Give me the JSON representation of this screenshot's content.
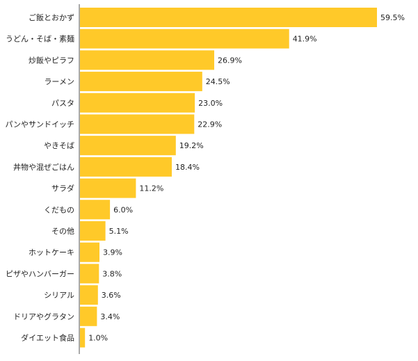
{
  "chart_data": {
    "type": "bar",
    "orientation": "horizontal",
    "categories": [
      "ご飯とおかず",
      "うどん・そば・素麺",
      "炒飯やピラフ",
      "ラーメン",
      "パスタ",
      "パンやサンドイッチ",
      "やきそば",
      "丼物や混ぜごはん",
      "サラダ",
      "くだもの",
      "その他",
      "ホットケーキ",
      "ピザやハンバーガー",
      "シリアル",
      "ドリアやグラタン",
      "ダイエット食品"
    ],
    "values": [
      59.5,
      41.9,
      26.9,
      24.5,
      23.0,
      22.9,
      19.2,
      18.4,
      11.2,
      6.0,
      5.1,
      3.9,
      3.8,
      3.6,
      3.4,
      1.0
    ],
    "value_labels": [
      "59.5%",
      "41.9%",
      "26.9%",
      "24.5%",
      "23.0%",
      "22.9%",
      "19.2%",
      "18.4%",
      "11.2%",
      "6.0%",
      "5.1%",
      "3.9%",
      "3.8%",
      "3.6%",
      "3.4%",
      "1.0%"
    ],
    "unit": "%",
    "xlim": [
      0,
      59.5
    ],
    "grid": false,
    "legend": "none",
    "bar_color": "#FFC929",
    "axis_color": "#555555"
  }
}
